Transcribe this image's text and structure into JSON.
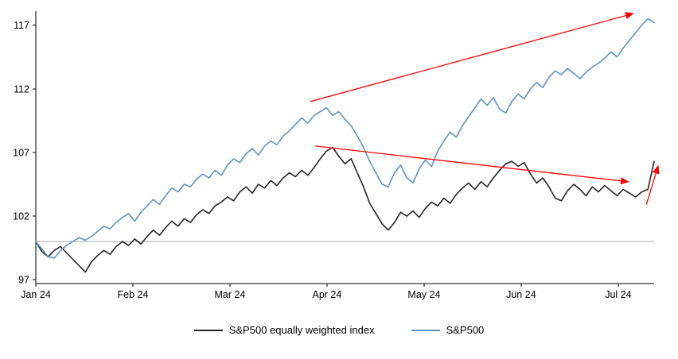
{
  "chart_data": {
    "type": "line",
    "x_tick_labels": [
      "Jan 24",
      "Feb 24",
      "Mar 24",
      "Apr 24",
      "May 24",
      "Jun 24",
      "Jul 24"
    ],
    "x_tick_positions_months": [
      0,
      1,
      2,
      3,
      4,
      5,
      6
    ],
    "x_domain_months": [
      0,
      6.37
    ],
    "y_ticks": [
      97,
      102,
      107,
      112,
      117
    ],
    "y_domain": [
      96.7,
      118.1
    ],
    "reference_line_y": 100,
    "grid": "off",
    "legend_position": "bottom",
    "colors": {
      "axis": "#000000",
      "reference_line": "#a6a6a6",
      "text": "#000000"
    },
    "series": [
      {
        "name": "S&P500 equally weighted index",
        "color": "#262626",
        "values": [
          100.0,
          99.2,
          98.8,
          99.3,
          99.6,
          99.1,
          98.6,
          98.1,
          97.6,
          98.4,
          98.9,
          99.3,
          99.0,
          99.6,
          100.0,
          99.7,
          100.2,
          99.8,
          100.4,
          100.9,
          100.5,
          101.1,
          101.6,
          101.2,
          101.8,
          101.5,
          102.1,
          102.5,
          102.2,
          102.8,
          103.1,
          103.5,
          103.2,
          103.9,
          104.3,
          103.8,
          104.5,
          104.2,
          104.8,
          104.4,
          105.0,
          105.4,
          105.1,
          105.6,
          105.2,
          105.8,
          106.5,
          107.1,
          107.4,
          106.7,
          106.1,
          106.5,
          105.4,
          104.3,
          103.0,
          102.2,
          101.4,
          100.9,
          101.5,
          102.3,
          102.0,
          102.4,
          101.9,
          102.6,
          103.1,
          102.8,
          103.4,
          103.0,
          103.7,
          104.2,
          104.6,
          104.1,
          104.7,
          104.3,
          105.0,
          105.6,
          106.1,
          106.3,
          105.9,
          106.2,
          105.3,
          104.6,
          105.0,
          104.3,
          103.4,
          103.2,
          104.0,
          104.5,
          104.1,
          103.6,
          104.3,
          103.9,
          104.4,
          104.0,
          103.6,
          104.1,
          103.8,
          103.5,
          103.9,
          104.1,
          106.3
        ]
      },
      {
        "name": "S&P500",
        "color": "#5E94C5",
        "values": [
          100.0,
          99.4,
          98.8,
          98.7,
          99.3,
          99.7,
          100.0,
          100.3,
          100.1,
          100.4,
          100.8,
          101.2,
          101.0,
          101.5,
          101.9,
          102.2,
          101.6,
          102.3,
          102.8,
          103.3,
          102.9,
          103.6,
          104.2,
          103.9,
          104.5,
          104.3,
          104.9,
          105.3,
          105.0,
          105.6,
          105.2,
          106.0,
          106.5,
          106.2,
          106.9,
          107.3,
          106.8,
          107.5,
          107.9,
          107.6,
          108.3,
          108.7,
          109.2,
          109.7,
          109.3,
          109.9,
          110.2,
          110.5,
          109.9,
          110.2,
          109.6,
          109.1,
          108.3,
          107.4,
          106.3,
          105.4,
          104.5,
          104.3,
          105.4,
          106.0,
          105.0,
          104.6,
          105.7,
          106.4,
          105.9,
          107.1,
          107.9,
          108.6,
          108.2,
          109.1,
          109.8,
          110.5,
          111.2,
          110.7,
          111.3,
          110.4,
          110.1,
          111.0,
          111.6,
          111.2,
          112.0,
          112.5,
          112.1,
          112.9,
          113.4,
          113.1,
          113.6,
          113.2,
          112.8,
          113.3,
          113.7,
          114.0,
          114.4,
          114.9,
          114.5,
          115.2,
          115.8,
          116.4,
          117.0,
          117.5,
          117.2
        ]
      }
    ],
    "annotations": {
      "color": "#FF0000",
      "arrows": [
        {
          "x1": 2.83,
          "y1": 111.0,
          "x2": 6.15,
          "y2": 117.9
        },
        {
          "x1": 2.88,
          "y1": 107.5,
          "x2": 6.1,
          "y2": 104.7
        },
        {
          "x1": 6.29,
          "y1": 102.9,
          "x2": 6.41,
          "y2": 105.9
        }
      ]
    }
  }
}
